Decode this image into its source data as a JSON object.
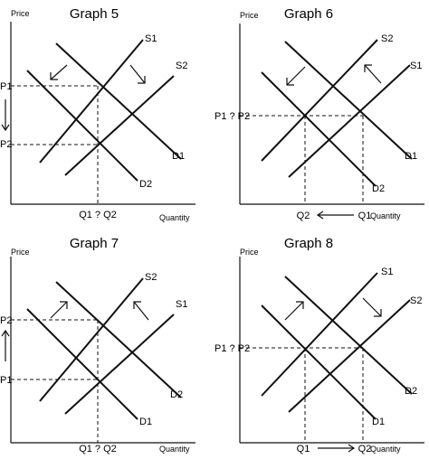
{
  "graphs": [
    {
      "title": "Graph 5",
      "price_label": "Price",
      "quantity_label": "Quantity",
      "curves": [
        "S1",
        "S2",
        "D1",
        "D2"
      ],
      "price_labels": [
        "P1",
        "P2"
      ],
      "quantity_label_text": "Q1 ? Q2"
    },
    {
      "title": "Graph 6",
      "price_label": "Price",
      "quantity_label": "Quantity",
      "curves": [
        "S2",
        "S1",
        "D1",
        "D2"
      ],
      "price_label_text": "P1 ? P2",
      "quantity_labels": [
        "Q2",
        "Q1"
      ]
    },
    {
      "title": "Graph 7",
      "price_label": "Price",
      "quantity_label": "Quantity",
      "curves": [
        "S2",
        "S1",
        "D2",
        "D1"
      ],
      "price_labels": [
        "P2",
        "P1"
      ],
      "quantity_label_text": "Q1 ? Q2"
    },
    {
      "title": "Graph 8",
      "price_label": "Price",
      "quantity_label": "Quantity",
      "curves": [
        "S1",
        "S2",
        "D2",
        "D1"
      ],
      "price_label_text": "P1 ? P2",
      "quantity_labels": [
        "Q1",
        "Q2"
      ]
    }
  ]
}
